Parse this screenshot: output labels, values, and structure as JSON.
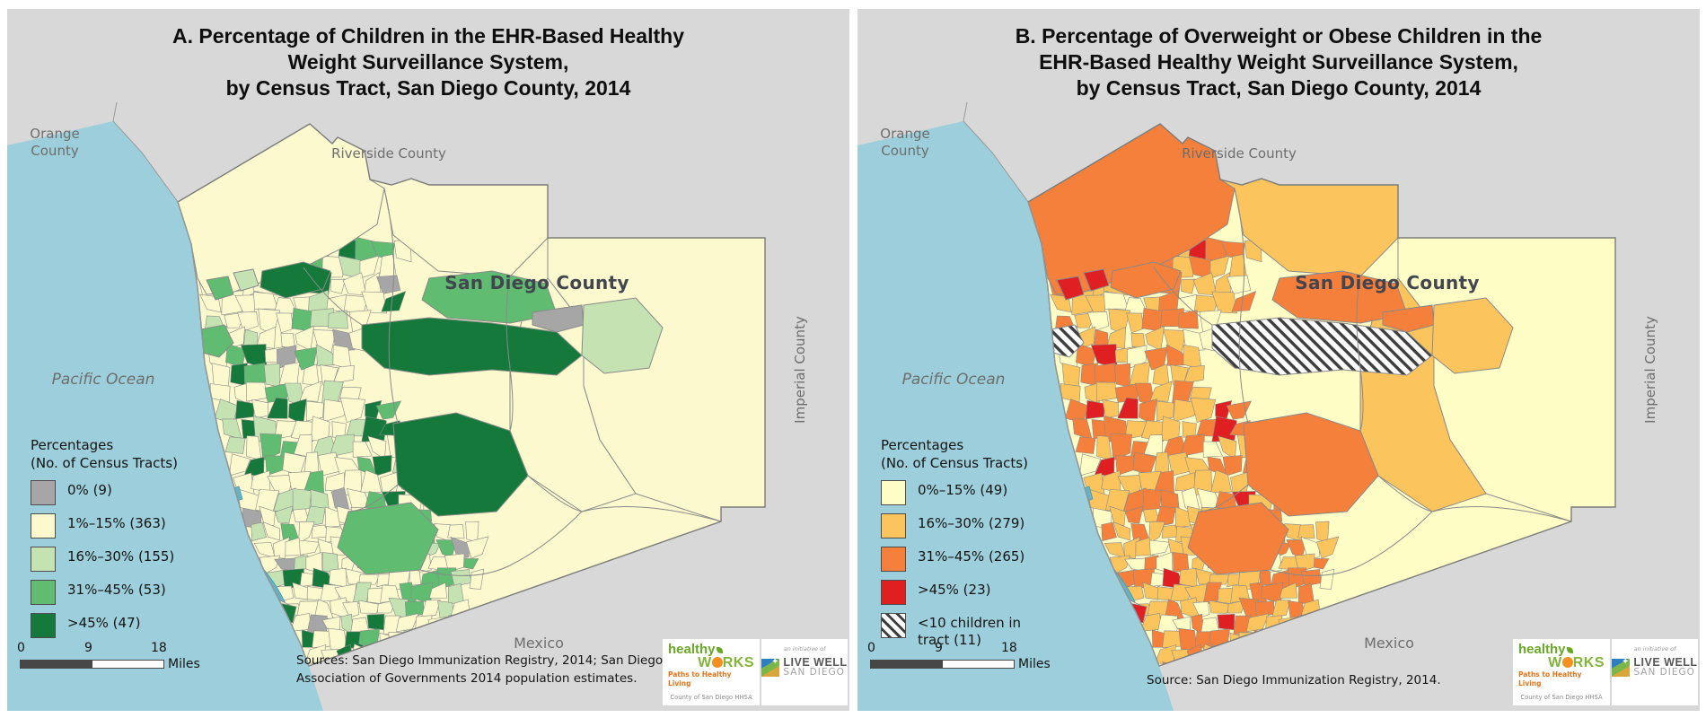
{
  "colors": {
    "panel_bg": "#D8D8D8",
    "ocean": "#9CCFDB",
    "bay": "#62B4C8",
    "county_border": "#8A8A8A",
    "context_label": "#6E6E6E",
    "county_label": "#43454F"
  },
  "map_labels": {
    "orange_line1": "Orange",
    "orange_line2": "County",
    "riverside": "Riverside County",
    "san_diego": "San Diego County",
    "pacific": "Pacific Ocean",
    "imperial": "Imperial County",
    "mexico": "Mexico"
  },
  "logos": {
    "healthy": "healthy",
    "works_w": "W",
    "works_rks": "RKS",
    "tagline": "Paths to Healthy Living",
    "agency": "County of San Diego HHSA",
    "initiative": "an initiative of",
    "live_well": "LIVE WELL",
    "san_diego": "SAN DIEGO"
  },
  "panels": [
    {
      "id": "A",
      "title_lines": [
        "A. Percentage of Children in the EHR-Based Healthy",
        "Weight Surveillance System,",
        "by Census Tract, San Diego County, 2014"
      ],
      "legend": {
        "title_line1": "Percentages",
        "title_line2": "(No. of Census Tracts)",
        "items": [
          {
            "label": "0% (9)",
            "color": "#A6A6A6"
          },
          {
            "label": "1%–15% (363)",
            "color": "#FBF9CD"
          },
          {
            "label": "16%–30% (155)",
            "color": "#C5E3B2"
          },
          {
            "label": "31%–45% (53)",
            "color": "#5FBC70"
          },
          {
            "label": ">45% (47)",
            "color": "#14793B"
          }
        ]
      },
      "scalebar": {
        "t0": "0",
        "t1": "9",
        "t2": "18",
        "unit": "Miles"
      },
      "source_lines": [
        "Sources: San Diego Immunization Registry, 2014; San Diego",
        "Association of Governments 2014 population estimates."
      ],
      "palette": {
        "gray": "#A6A6A6",
        "low": "#FBF9CD",
        "mid": "#C5E3B2",
        "high": "#5FBC70",
        "top": "#14793B"
      }
    },
    {
      "id": "B",
      "title_lines": [
        "B. Percentage of Overweight or Obese Children in the",
        "EHR-Based Healthy Weight Surveillance System,",
        "by Census Tract, San Diego County, 2014"
      ],
      "legend": {
        "title_line1": "Percentages",
        "title_line2": "(No. of Census Tracts)",
        "items": [
          {
            "label": "0%–15% (49)",
            "color": "#FFFDC6"
          },
          {
            "label": "16%–30% (279)",
            "color": "#FCC45D"
          },
          {
            "label": "31%–45% (265)",
            "color": "#F5803C"
          },
          {
            "label": ">45% (23)",
            "color": "#E01F23"
          },
          {
            "label": "<10 children in tract (11)",
            "color": "hatch"
          }
        ]
      },
      "scalebar": {
        "t0": "0",
        "t1": "9",
        "t2": "18",
        "unit": "Miles"
      },
      "source_lines": [
        "Source: San Diego Immunization Registry, 2014."
      ],
      "palette": {
        "gray": "#A6A6A6",
        "low": "#FFFDC6",
        "mid": "#FCC45D",
        "high": "#F5803C",
        "top": "#E01F23"
      }
    }
  ]
}
